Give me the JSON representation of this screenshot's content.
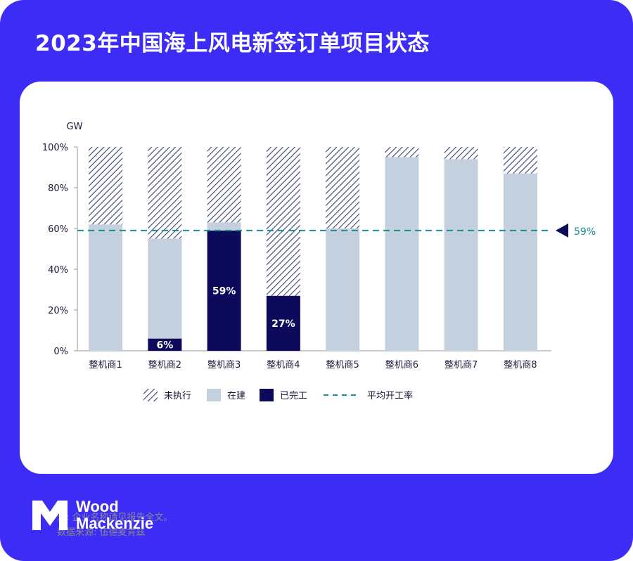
{
  "title": "2023年中国海上风电新签订单项目状态",
  "chart_data": {
    "type": "bar",
    "stacked": true,
    "ylabel": "GW",
    "ylim": [
      0,
      100
    ],
    "yticks": [
      "0%",
      "20%",
      "40%",
      "60%",
      "80%",
      "100%"
    ],
    "categories": [
      "整机商1",
      "整机商2",
      "整机商3",
      "整机商4",
      "整机商5",
      "整机商6",
      "整机商7",
      "整机商8"
    ],
    "series": [
      {
        "name": "已完工",
        "color": "#0d0a5c",
        "values": [
          0,
          6,
          59,
          27,
          0,
          0,
          0,
          0
        ]
      },
      {
        "name": "在建",
        "color": "#c5d0df",
        "values": [
          62,
          49,
          4,
          0,
          60,
          95,
          94,
          87
        ]
      },
      {
        "name": "未执行",
        "color": "#3b3f73",
        "pattern": "hatch",
        "values": [
          38,
          45,
          37,
          73,
          40,
          5,
          6,
          13
        ]
      }
    ],
    "data_labels": [
      {
        "category": "整机商2",
        "text": "6%"
      },
      {
        "category": "整机商3",
        "text": "59%"
      },
      {
        "category": "整机商4",
        "text": "27%"
      }
    ],
    "reference_line": {
      "name": "平均开工率",
      "value": 59,
      "label": "59%",
      "color": "#1a8f8f"
    },
    "legend": [
      "未执行",
      "在建",
      "已完工",
      "平均开工率"
    ],
    "legend_position": "bottom",
    "grid": false
  },
  "notes": [
    "注: 企业名称请见报告全文。",
    "数据来源: 伍德麦肯兹"
  ],
  "logo": {
    "line1": "Wood",
    "line2": "Mackenzie"
  }
}
